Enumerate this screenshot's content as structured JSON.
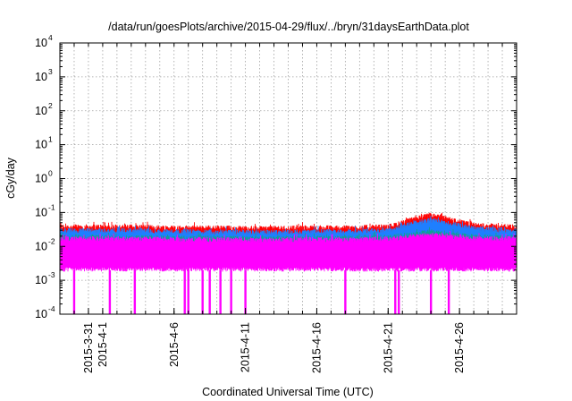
{
  "chart_data": {
    "type": "area",
    "title": "/data/run/goesPlots/archive/2015-04-29/flux/../bryn/31daysEarthData.plot",
    "xlabel": "Coordinated Universal Time (UTC)",
    "ylabel": "cGy/day",
    "y_scale": "log",
    "ylim": [
      0.0001,
      10000
    ],
    "xlim": [
      "2015-03-29",
      "2015-04-30"
    ],
    "grid": true,
    "legend": "none",
    "y_ticks": [
      {
        "value": 0.0001,
        "base": "10",
        "exp": "-4"
      },
      {
        "value": 0.001,
        "base": "10",
        "exp": "-3"
      },
      {
        "value": 0.01,
        "base": "10",
        "exp": "-2"
      },
      {
        "value": 0.1,
        "base": "10",
        "exp": "-1"
      },
      {
        "value": 1,
        "base": "10",
        "exp": "0"
      },
      {
        "value": 10,
        "base": "10",
        "exp": "1"
      },
      {
        "value": 100,
        "base": "10",
        "exp": "2"
      },
      {
        "value": 1000,
        "base": "10",
        "exp": "3"
      },
      {
        "value": 10000,
        "base": "10",
        "exp": "4"
      }
    ],
    "x_ticks": [
      "2015-3-31",
      "2015-4-1",
      "2015-4-6",
      "2015-4-11",
      "2015-4-16",
      "2015-4-21",
      "2015-4-26"
    ],
    "x_tick_dates": [
      "2015-03-31",
      "2015-04-01",
      "2015-04-06",
      "2015-04-11",
      "2015-04-16",
      "2015-04-21",
      "2015-04-26"
    ],
    "x": [
      "2015-03-29",
      "2015-03-31",
      "2015-04-03",
      "2015-04-06",
      "2015-04-09",
      "2015-04-12",
      "2015-04-15",
      "2015-04-18",
      "2015-04-21",
      "2015-04-23",
      "2015-04-24",
      "2015-04-25",
      "2015-04-27",
      "2015-04-30"
    ],
    "series": [
      {
        "color": "#ff0000",
        "low": [
          0.015,
          0.015,
          0.015,
          0.015,
          0.015,
          0.015,
          0.015,
          0.015,
          0.017,
          0.025,
          0.03,
          0.025,
          0.018,
          0.016
        ],
        "high": [
          0.045,
          0.045,
          0.045,
          0.042,
          0.042,
          0.04,
          0.042,
          0.042,
          0.045,
          0.08,
          0.1,
          0.08,
          0.05,
          0.045
        ]
      },
      {
        "color": "#1e7fff",
        "low": [
          0.01,
          0.01,
          0.01,
          0.01,
          0.01,
          0.01,
          0.01,
          0.01,
          0.012,
          0.018,
          0.02,
          0.017,
          0.012,
          0.011
        ],
        "high": [
          0.035,
          0.035,
          0.035,
          0.033,
          0.032,
          0.031,
          0.032,
          0.033,
          0.035,
          0.06,
          0.07,
          0.06,
          0.04,
          0.035
        ]
      },
      {
        "color": "#10a090",
        "low": [
          0.005,
          0.005,
          0.005,
          0.005,
          0.005,
          0.005,
          0.005,
          0.005,
          0.005,
          0.006,
          0.007,
          0.006,
          0.005,
          0.005
        ],
        "high": [
          0.022,
          0.022,
          0.022,
          0.021,
          0.021,
          0.02,
          0.021,
          0.021,
          0.022,
          0.028,
          0.032,
          0.028,
          0.023,
          0.022
        ]
      },
      {
        "color": "#ff00ff",
        "low": [
          0.002,
          0.002,
          0.002,
          0.002,
          0.002,
          0.002,
          0.002,
          0.002,
          0.002,
          0.002,
          0.002,
          0.002,
          0.002,
          0.002
        ],
        "high": [
          0.02,
          0.02,
          0.02,
          0.019,
          0.019,
          0.018,
          0.019,
          0.019,
          0.02,
          0.024,
          0.026,
          0.024,
          0.02,
          0.02
        ]
      }
    ],
    "magenta_dropouts": [
      "2015-03-30 00:00",
      "2015-04-01 12:00",
      "2015-04-03 06:00",
      "2015-04-06 18:00",
      "2015-04-07 00:00",
      "2015-04-08 00:00",
      "2015-04-08 12:00",
      "2015-04-09 06:00",
      "2015-04-10 00:00",
      "2015-04-11 00:00",
      "2015-04-18 00:00",
      "2015-04-21 12:00",
      "2015-04-21 18:00",
      "2015-04-24 00:00",
      "2015-04-25 06:00"
    ]
  }
}
